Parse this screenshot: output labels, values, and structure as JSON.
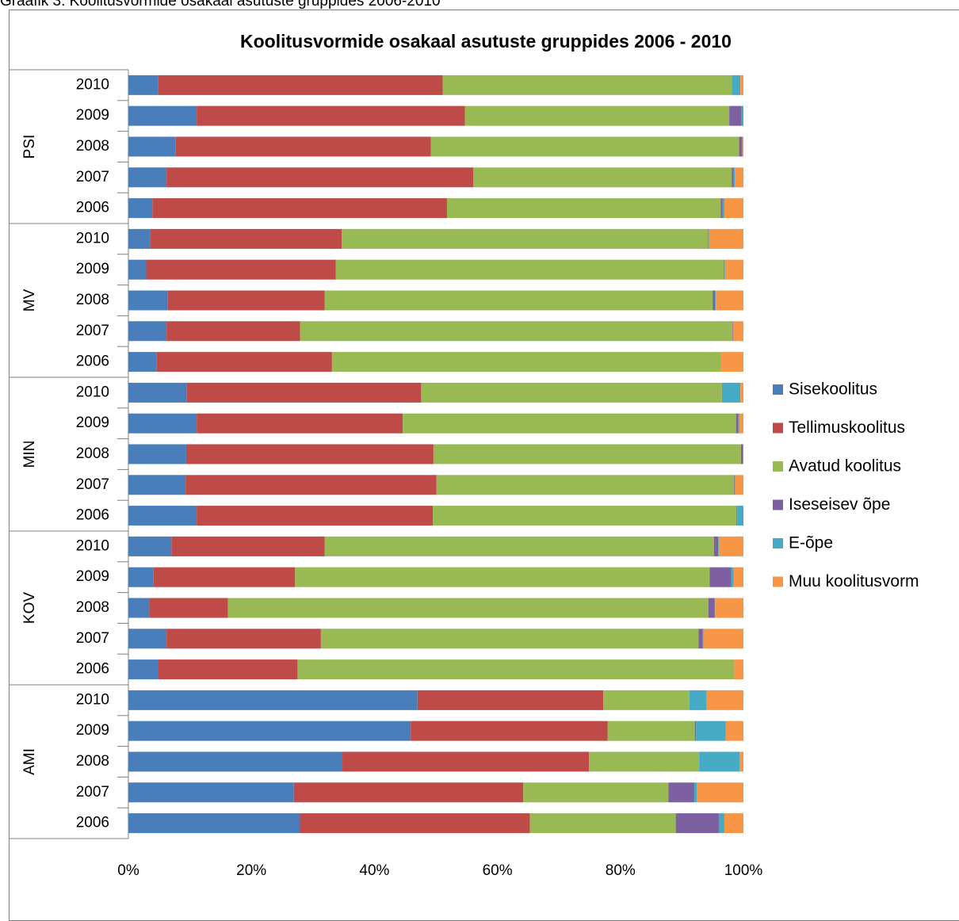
{
  "caption": "Graafik 3. Koolitusvormide osakaal asutuste gruppides 2006-2010",
  "chart_data": {
    "type": "bar",
    "orientation": "horizontal",
    "stacked": "percent",
    "title": "Koolitusvormide osakaal asutuste gruppides 2006 - 2010",
    "xlabel": "",
    "ylabel": "",
    "xlim": [
      0,
      100
    ],
    "xticks": [
      "0%",
      "20%",
      "40%",
      "60%",
      "80%",
      "100%"
    ],
    "legend_position": "right",
    "series_names": [
      "Sisekoolitus",
      "Tellimuskoolitus",
      "Avatud koolitus",
      "Iseseisev õpe",
      "E-õpe",
      "Muu koolitusvorm"
    ],
    "colors": [
      "#4a7ebb",
      "#be4b48",
      "#98b954",
      "#7d60a0",
      "#46aac5",
      "#f79646"
    ],
    "groups": [
      {
        "name": "PSI",
        "rows": [
          {
            "year": "2010",
            "values": [
              4.8,
              46.3,
              47.0,
              0.0,
              1.4,
              0.5
            ]
          },
          {
            "year": "2009",
            "values": [
              11.1,
              43.6,
              43.0,
              2.0,
              0.3,
              0.0
            ]
          },
          {
            "year": "2008",
            "values": [
              7.7,
              41.5,
              50.1,
              0.5,
              0.0,
              0.2
            ]
          },
          {
            "year": "2007",
            "values": [
              6.2,
              49.9,
              42.0,
              0.3,
              0.2,
              1.4
            ]
          },
          {
            "year": "2006",
            "values": [
              3.9,
              47.9,
              44.5,
              0.3,
              0.3,
              3.1
            ]
          }
        ]
      },
      {
        "name": "MV",
        "rows": [
          {
            "year": "2010",
            "values": [
              3.5,
              31.2,
              59.5,
              0.0,
              0.2,
              5.6
            ]
          },
          {
            "year": "2009",
            "values": [
              2.9,
              30.8,
              63.1,
              0.1,
              0.1,
              3.0
            ]
          },
          {
            "year": "2008",
            "values": [
              6.4,
              25.5,
              63.1,
              0.4,
              0.1,
              4.5
            ]
          },
          {
            "year": "2007",
            "values": [
              6.2,
              21.7,
              70.3,
              0.1,
              0.0,
              1.7
            ]
          },
          {
            "year": "2006",
            "values": [
              4.6,
              28.5,
              63.3,
              0.0,
              0.0,
              3.6
            ]
          }
        ]
      },
      {
        "name": "MIN",
        "rows": [
          {
            "year": "2010",
            "values": [
              9.5,
              38.1,
              48.9,
              0.0,
              3.0,
              0.5
            ]
          },
          {
            "year": "2009",
            "values": [
              11.1,
              33.5,
              54.2,
              0.4,
              0.1,
              0.7
            ]
          },
          {
            "year": "2008",
            "values": [
              9.4,
              40.2,
              50.0,
              0.3,
              0.1,
              0.0
            ]
          },
          {
            "year": "2007",
            "values": [
              9.3,
              40.8,
              48.4,
              0.1,
              0.1,
              1.3
            ]
          },
          {
            "year": "2006",
            "values": [
              11.1,
              38.4,
              49.4,
              0.1,
              1.0,
              0.0
            ]
          }
        ]
      },
      {
        "name": "KOV",
        "rows": [
          {
            "year": "2010",
            "values": [
              7.0,
              24.9,
              63.3,
              0.7,
              0.1,
              4.0
            ]
          },
          {
            "year": "2009",
            "values": [
              4.1,
              23.0,
              67.4,
              3.5,
              0.4,
              1.6
            ]
          },
          {
            "year": "2008",
            "values": [
              3.4,
              12.8,
              78.1,
              1.0,
              0.1,
              4.6
            ]
          },
          {
            "year": "2007",
            "values": [
              6.2,
              25.1,
              61.4,
              0.7,
              0.1,
              6.5
            ]
          },
          {
            "year": "2006",
            "values": [
              4.9,
              22.6,
              71.0,
              0.0,
              0.0,
              1.5
            ]
          }
        ]
      },
      {
        "name": "AMI",
        "rows": [
          {
            "year": "2010",
            "values": [
              47.0,
              30.2,
              14.0,
              0.0,
              2.8,
              6.0
            ]
          },
          {
            "year": "2009",
            "values": [
              45.9,
              32.0,
              14.2,
              0.2,
              4.8,
              2.9
            ]
          },
          {
            "year": "2008",
            "values": [
              34.8,
              40.1,
              17.9,
              0.0,
              6.6,
              0.6
            ]
          },
          {
            "year": "2007",
            "values": [
              26.9,
              37.3,
              23.6,
              4.2,
              0.4,
              7.6
            ]
          },
          {
            "year": "2006",
            "values": [
              27.9,
              37.4,
              23.7,
              7.0,
              0.9,
              3.1
            ]
          }
        ]
      }
    ]
  }
}
